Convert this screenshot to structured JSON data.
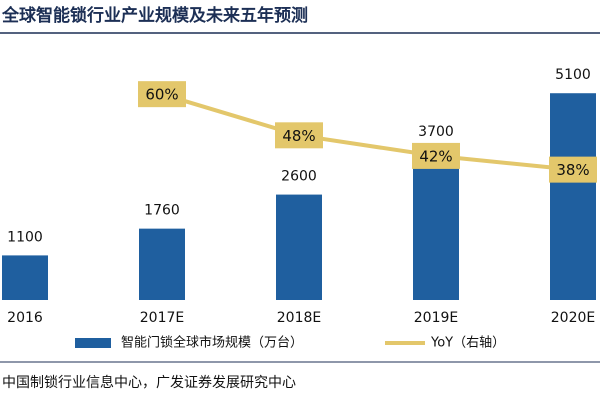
{
  "chart_data": {
    "type": "bar_line",
    "title": "全球智能锁行业产业规模及未来五年预测",
    "categories": [
      "2016",
      "2017E",
      "2018E",
      "2019E",
      "2020E"
    ],
    "series": [
      {
        "name": "智能门锁全球市场规模（万台）",
        "type": "bar",
        "color": "#1f5f9f",
        "values": [
          1100,
          1760,
          2600,
          3700,
          5100
        ]
      },
      {
        "name": "YoY（右轴）",
        "type": "line",
        "axis": "y2",
        "color": "#e3c76b",
        "values": [
          null,
          60,
          48,
          42,
          38
        ],
        "value_labels": [
          null,
          "60%",
          "48%",
          "42%",
          "38%"
        ]
      }
    ],
    "ylim": [
      0,
      5500
    ],
    "y2lim": [
      0,
      65
    ],
    "legend": "bottom",
    "source": "中国制锁行业信息中心，广发证券发展研究中心"
  }
}
